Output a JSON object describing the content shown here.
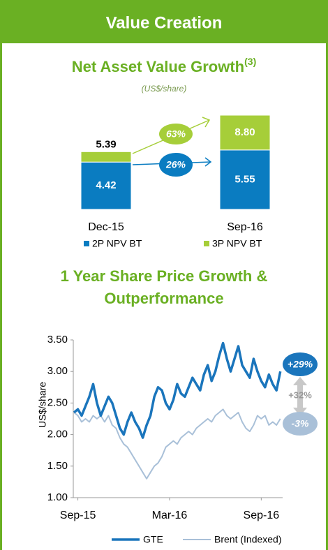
{
  "header": {
    "title": "Value Creation"
  },
  "chart_data": [
    {
      "type": "bar",
      "title": "Net Asset Value Growth",
      "title_superscript": "(3)",
      "subtitle": "(US$/share)",
      "categories": [
        "Dec-15",
        "Sep-16"
      ],
      "series": [
        {
          "name": "2P NPV BT",
          "color": "#0a7cc1",
          "values": [
            4.42,
            5.55
          ]
        },
        {
          "name": "3P NPV BT",
          "color": "#a6ce39",
          "values": [
            0.97,
            3.25
          ]
        }
      ],
      "totals": [
        5.39,
        8.8
      ],
      "total_labels": [
        "5.39",
        "8.80"
      ],
      "annotations": [
        {
          "text": "63%",
          "color": "#a6ce39"
        },
        {
          "text": "26%",
          "color": "#0a7cc1"
        }
      ]
    },
    {
      "type": "line",
      "title": "1 Year Share Price Growth & Outperformance",
      "ylabel": "US$/share",
      "xlim": [
        -0.3,
        13.4
      ],
      "xticks": [
        {
          "value": 0,
          "label": "Sep-15"
        },
        {
          "value": 6,
          "label": "Mar-16"
        },
        {
          "value": 12,
          "label": "Sep-16"
        }
      ],
      "ylim": [
        1.0,
        3.5
      ],
      "yticks": [
        {
          "value": 1.0,
          "label": "1.00"
        },
        {
          "value": 1.5,
          "label": "1.50"
        },
        {
          "value": 2.0,
          "label": "2.00"
        },
        {
          "value": 2.5,
          "label": "2.50"
        },
        {
          "value": 3.0,
          "label": "3.00"
        },
        {
          "value": 3.5,
          "label": "3.50"
        }
      ],
      "x": [
        -0.25,
        0,
        0.25,
        0.5,
        0.75,
        1,
        1.25,
        1.5,
        1.75,
        2,
        2.25,
        2.5,
        2.75,
        3,
        3.25,
        3.5,
        3.75,
        4,
        4.25,
        4.5,
        4.75,
        5,
        5.25,
        5.5,
        5.75,
        6,
        6.25,
        6.5,
        6.75,
        7,
        7.25,
        7.5,
        7.75,
        8,
        8.25,
        8.5,
        8.75,
        9,
        9.25,
        9.5,
        9.75,
        10,
        10.25,
        10.5,
        10.75,
        11,
        11.25,
        11.5,
        11.75,
        12,
        12.25,
        12.5,
        12.75,
        13,
        13.25
      ],
      "series": [
        {
          "name": "GTE",
          "color": "#1a75bc",
          "width": 3.5,
          "values": [
            2.35,
            2.4,
            2.3,
            2.45,
            2.6,
            2.8,
            2.5,
            2.3,
            2.45,
            2.6,
            2.5,
            2.3,
            2.1,
            2.0,
            2.2,
            2.35,
            2.2,
            2.1,
            1.95,
            2.15,
            2.3,
            2.6,
            2.75,
            2.7,
            2.5,
            2.4,
            2.55,
            2.8,
            2.65,
            2.6,
            2.75,
            2.9,
            2.8,
            2.7,
            2.95,
            3.1,
            2.85,
            3.0,
            3.25,
            3.45,
            3.2,
            3.0,
            3.2,
            3.4,
            3.1,
            3.0,
            2.9,
            3.2,
            3.0,
            2.85,
            2.75,
            2.95,
            2.8,
            2.7,
            3.0
          ]
        },
        {
          "name": "Brent (Indexed)",
          "color": "#a9c0d8",
          "width": 2,
          "values": [
            2.35,
            2.3,
            2.2,
            2.25,
            2.2,
            2.3,
            2.25,
            2.3,
            2.2,
            2.3,
            2.15,
            2.1,
            1.95,
            1.85,
            1.8,
            1.7,
            1.6,
            1.5,
            1.4,
            1.3,
            1.4,
            1.5,
            1.55,
            1.65,
            1.8,
            1.85,
            1.9,
            1.85,
            1.95,
            2.0,
            2.05,
            2.0,
            2.1,
            2.15,
            2.2,
            2.25,
            2.2,
            2.3,
            2.35,
            2.4,
            2.3,
            2.25,
            2.3,
            2.35,
            2.2,
            2.1,
            2.05,
            2.15,
            2.3,
            2.25,
            2.3,
            2.15,
            2.2,
            2.15,
            2.25
          ]
        }
      ],
      "annotations": [
        {
          "text": "+29%",
          "color": "#1a75bc"
        },
        {
          "text": "+32%",
          "color": "#999999"
        },
        {
          "text": "-3%",
          "color": "#a9c0d8"
        }
      ]
    }
  ]
}
